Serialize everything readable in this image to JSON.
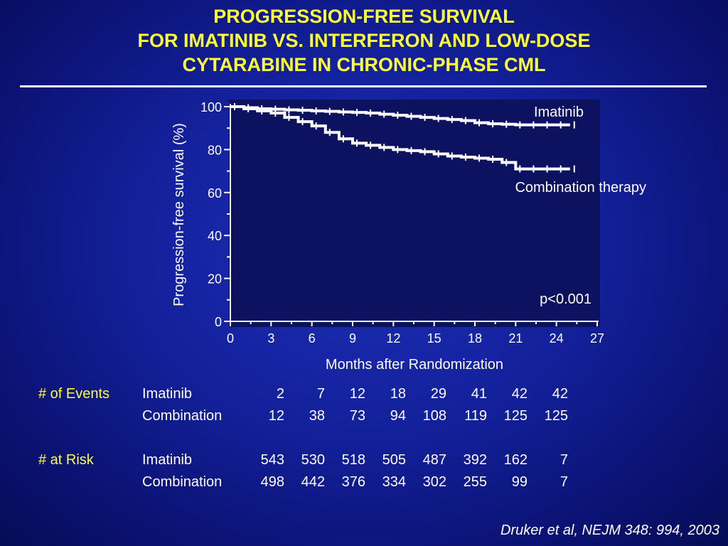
{
  "title_lines": [
    "PROGRESSION-FREE SURVIVAL",
    "FOR IMATINIB VS. INTERFERON AND LOW-DOSE",
    "CYTARABINE IN CHRONIC-PHASE CML"
  ],
  "chart_data": {
    "type": "line",
    "xlabel": "Months after Randomization",
    "ylabel": "Progression-free survival (%)",
    "xlim": [
      0,
      27
    ],
    "ylim": [
      0,
      100
    ],
    "xticks": [
      0,
      3,
      6,
      9,
      12,
      15,
      18,
      21,
      24,
      27
    ],
    "yticks": [
      0,
      20,
      40,
      60,
      80,
      100
    ],
    "grid": false,
    "series": [
      {
        "name": "Imatinib",
        "x": [
          0,
          1,
          2,
          3,
          4,
          5,
          6,
          7,
          8,
          9,
          10,
          11,
          12,
          13,
          14,
          15,
          16,
          17,
          18,
          19,
          20,
          21,
          22,
          23,
          24,
          25
        ],
        "y": [
          100,
          99.5,
          99,
          98.8,
          98.5,
          98.3,
          98,
          97.8,
          97.5,
          97.3,
          97,
          96.5,
          96,
          95.5,
          95,
          94.5,
          94,
          93.5,
          92.5,
          92,
          91.8,
          91.5,
          91.5,
          91.5,
          91.5,
          91.5
        ]
      },
      {
        "name": "Combination therapy",
        "x": [
          0,
          1,
          2,
          3,
          4,
          5,
          6,
          7,
          8,
          9,
          10,
          11,
          12,
          13,
          14,
          15,
          16,
          17,
          18,
          19,
          20,
          21,
          22,
          23,
          24,
          25
        ],
        "y": [
          100,
          99,
          98,
          97,
          95,
          93,
          91,
          88,
          85,
          83,
          82,
          81,
          80,
          79.5,
          79,
          78,
          77,
          76.5,
          76,
          75.5,
          74,
          71,
          71,
          71,
          71,
          71
        ]
      }
    ],
    "annotations": {
      "imatinib_label": "Imatinib",
      "combination_label": "Combination therapy",
      "p_value": "p<0.001"
    }
  },
  "table": {
    "events_label": "# of Events",
    "risk_label": "# at Risk",
    "events": [
      {
        "name": "Imatinib",
        "values": [
          "2",
          "7",
          "12",
          "18",
          "29",
          "41",
          "42",
          "42"
        ]
      },
      {
        "name": "Combination",
        "values": [
          "12",
          "38",
          "73",
          "94",
          "108",
          "119",
          "125",
          "125"
        ]
      }
    ],
    "risk": [
      {
        "name": "Imatinib",
        "values": [
          "543",
          "530",
          "518",
          "505",
          "487",
          "392",
          "162",
          "7"
        ]
      },
      {
        "name": "Combination",
        "values": [
          "498",
          "442",
          "376",
          "334",
          "302",
          "255",
          "99",
          "7"
        ]
      }
    ]
  },
  "citation": "Druker et al, NEJM 348: 994, 2003"
}
